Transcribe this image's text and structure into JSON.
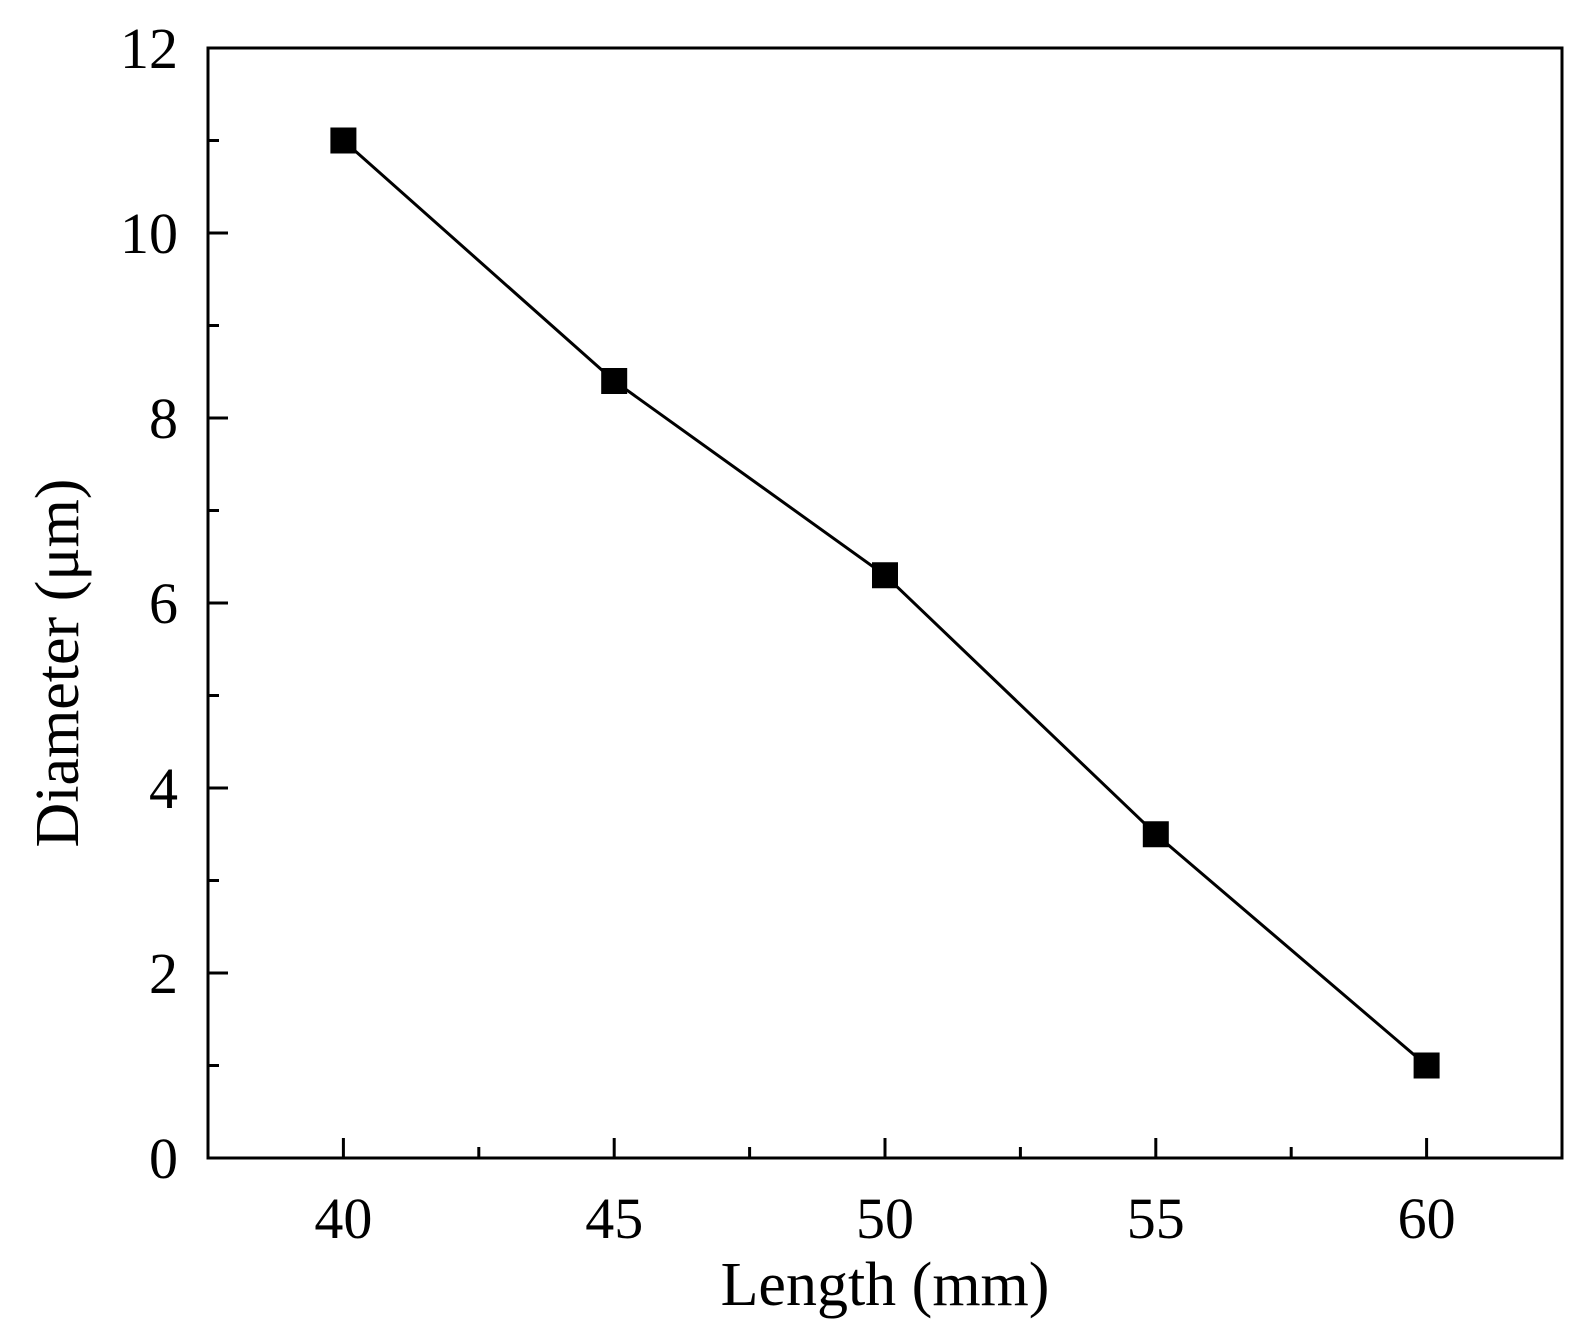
{
  "chart_data": {
    "type": "line",
    "title": "",
    "xlabel": "Length (mm)",
    "ylabel": "Diameter (μm)",
    "xlim": [
      37.5,
      62.5
    ],
    "ylim": [
      0,
      12
    ],
    "x_ticks": [
      40,
      45,
      50,
      55,
      60
    ],
    "x_minor_ticks": [
      42.5,
      47.5,
      52.5,
      57.5
    ],
    "y_ticks": [
      0,
      2,
      4,
      6,
      8,
      10,
      12
    ],
    "y_minor_ticks": [
      1,
      3,
      5,
      7,
      9,
      11
    ],
    "grid": false,
    "marker": "square",
    "series": [
      {
        "x": [
          40,
          45,
          50,
          55,
          60
        ],
        "values": [
          11.0,
          8.4,
          6.3,
          3.5,
          1.0
        ],
        "color": "#000000"
      }
    ]
  }
}
